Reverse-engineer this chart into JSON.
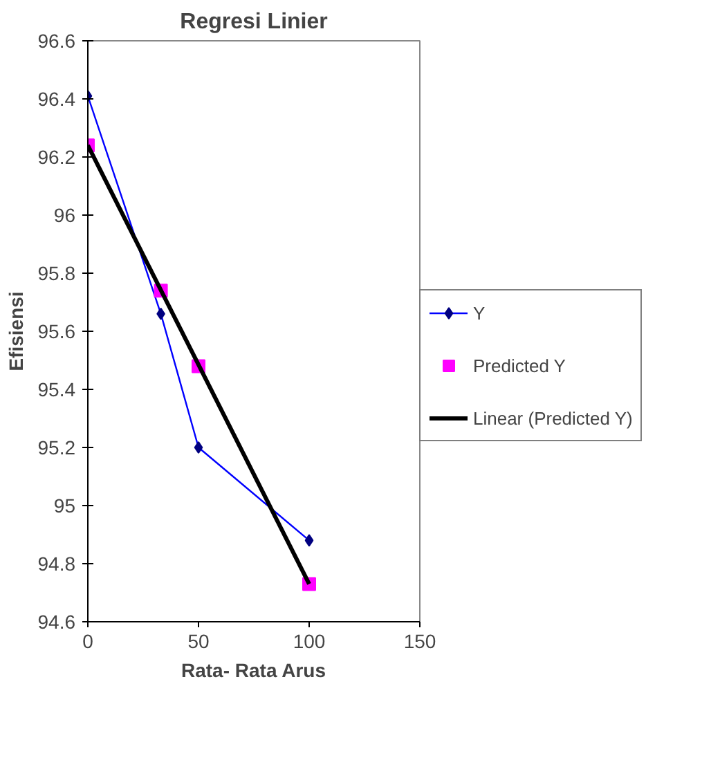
{
  "chart_data": {
    "type": "line",
    "title": "Regresi Linier",
    "xlabel": "Rata- Rata Arus",
    "ylabel": "Efisiensi",
    "xlim": [
      0,
      150
    ],
    "xticks": [
      0,
      50,
      100,
      150
    ],
    "ylim": [
      94.6,
      96.6
    ],
    "yticks": [
      94.6,
      94.8,
      95,
      95.2,
      95.4,
      95.6,
      95.8,
      96,
      96.2,
      96.4,
      96.6
    ],
    "grid": false,
    "legend": "right",
    "series": [
      {
        "name": "Y",
        "type": "line",
        "marker": "diamond",
        "color": "#0000ff",
        "x": [
          0,
          33,
          50,
          100
        ],
        "values": [
          96.41,
          95.66,
          95.2,
          94.88
        ]
      },
      {
        "name": "Predicted Y",
        "type": "scatter",
        "marker": "square",
        "color": "#ff00ff",
        "x": [
          0,
          33,
          50,
          100
        ],
        "values": [
          96.24,
          95.74,
          95.48,
          94.73
        ]
      },
      {
        "name": "Linear (Predicted Y)",
        "type": "line",
        "marker": "none",
        "color": "#000000",
        "x": [
          0,
          100
        ],
        "values": [
          96.24,
          94.73
        ]
      }
    ]
  }
}
